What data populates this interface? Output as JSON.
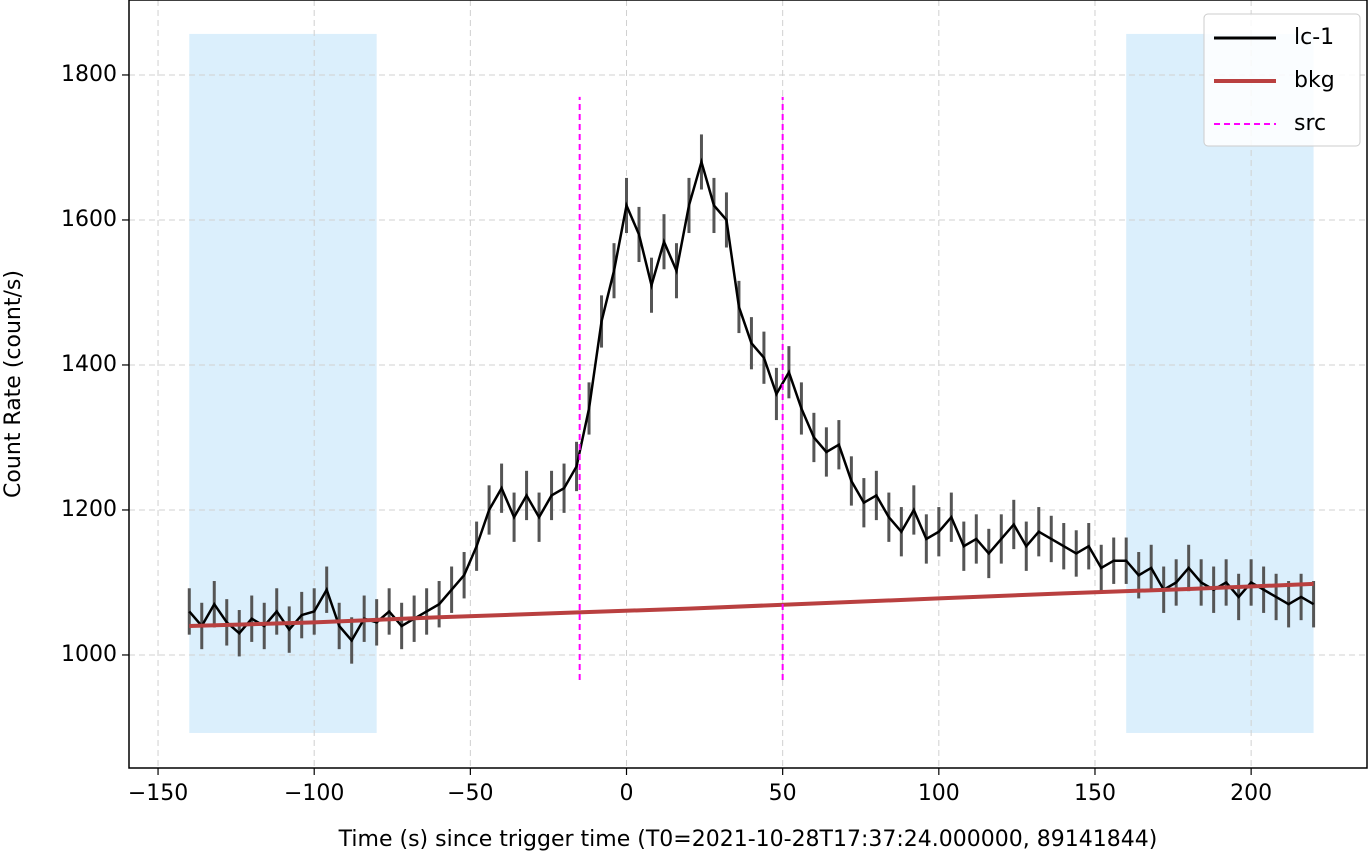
{
  "chart_data": {
    "type": "line",
    "xlabel": "Time (s) since trigger time (T0=2021-10-28T17:37:24.000000, 89141844)",
    "ylabel": "Count Rate (count/s)",
    "xlim": [
      -159.3,
      237.1
    ],
    "ylim": [
      844.1,
      1903.4
    ],
    "xticks": [
      {
        "value": -150,
        "label": "−150"
      },
      {
        "value": -100,
        "label": "−100"
      },
      {
        "value": -50,
        "label": "−50"
      },
      0,
      50,
      100,
      150,
      200
    ],
    "yticks": [
      1000,
      1200,
      1400,
      1600,
      1800
    ],
    "grid": true,
    "legend": "upper right",
    "spans": [
      {
        "x": [
          -140,
          -80
        ]
      },
      {
        "x": [
          160,
          220
        ]
      }
    ],
    "span_y": [
      892.4,
      1856.6
    ],
    "span_color": "#dbeffc",
    "series": [
      {
        "name": "lc-1",
        "color": "#000000",
        "error_color": "#555555",
        "x": [
          -140,
          -136,
          -132,
          -128,
          -124,
          -120,
          -116,
          -112,
          -108,
          -104,
          -100,
          -96,
          -92,
          -88,
          -84,
          -80,
          -76,
          -72,
          -68,
          -64,
          -60,
          -56,
          -52,
          -48,
          -44,
          -40,
          -36,
          -32,
          -28,
          -24,
          -20,
          -16,
          -12,
          -8,
          -4,
          0,
          4,
          8,
          12,
          16,
          20,
          24,
          28,
          32,
          36,
          40,
          44,
          48,
          52,
          56,
          60,
          64,
          68,
          72,
          76,
          80,
          84,
          88,
          92,
          96,
          100,
          104,
          108,
          112,
          116,
          120,
          124,
          128,
          132,
          136,
          140,
          144,
          148,
          152,
          156,
          160,
          164,
          168,
          172,
          176,
          180,
          184,
          188,
          192,
          196,
          200,
          204,
          208,
          212,
          216,
          220
        ],
        "values": [
          1060,
          1040,
          1070,
          1045,
          1030,
          1050,
          1040,
          1060,
          1035,
          1055,
          1060,
          1090,
          1040,
          1020,
          1050,
          1045,
          1060,
          1040,
          1050,
          1060,
          1070,
          1090,
          1110,
          1150,
          1200,
          1230,
          1190,
          1220,
          1190,
          1220,
          1230,
          1260,
          1340,
          1460,
          1530,
          1620,
          1580,
          1510,
          1570,
          1530,
          1620,
          1680,
          1620,
          1600,
          1480,
          1430,
          1410,
          1360,
          1390,
          1340,
          1300,
          1280,
          1290,
          1240,
          1210,
          1220,
          1190,
          1170,
          1200,
          1160,
          1170,
          1190,
          1150,
          1160,
          1140,
          1160,
          1180,
          1150,
          1170,
          1160,
          1150,
          1140,
          1150,
          1120,
          1130,
          1130,
          1110,
          1120,
          1090,
          1100,
          1120,
          1100,
          1090,
          1100,
          1080,
          1100,
          1090,
          1080,
          1070,
          1080,
          1070
        ],
        "errors": [
          32,
          32,
          32,
          32,
          32,
          32,
          32,
          32,
          32,
          32,
          32,
          32,
          32,
          32,
          32,
          32,
          32,
          32,
          32,
          32,
          32,
          32,
          32,
          34,
          34,
          34,
          34,
          34,
          34,
          34,
          34,
          34,
          36,
          36,
          38,
          38,
          38,
          38,
          38,
          38,
          38,
          38,
          38,
          38,
          36,
          36,
          36,
          36,
          36,
          36,
          34,
          34,
          34,
          34,
          34,
          34,
          34,
          34,
          34,
          34,
          34,
          34,
          34,
          34,
          34,
          34,
          34,
          34,
          34,
          32,
          32,
          32,
          32,
          32,
          32,
          32,
          32,
          32,
          32,
          32,
          32,
          32,
          32,
          32,
          32,
          32,
          32,
          32,
          32,
          32,
          32
        ]
      },
      {
        "name": "bkg",
        "color": "#b94040",
        "x": [
          -140,
          -100,
          -60,
          -20,
          20,
          60,
          100,
          140,
          180,
          220
        ],
        "values": [
          1040,
          1045,
          1052,
          1058,
          1064,
          1071,
          1078,
          1085,
          1091,
          1098
        ]
      },
      {
        "name": "src",
        "color": "#ff00ff",
        "dashed": true,
        "vlines": [
          -15,
          50
        ],
        "range": [
          965.5,
          1769.7
        ]
      }
    ]
  }
}
